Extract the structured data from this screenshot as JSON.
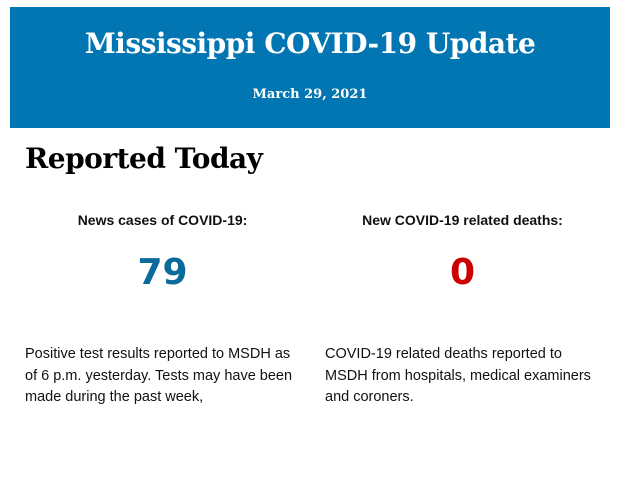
{
  "header": {
    "title": "Mississippi COVID-19 Update",
    "date": "March 29, 2021",
    "background_color": "#0176b2"
  },
  "section": {
    "title": "Reported Today"
  },
  "stats": [
    {
      "label": "News cases of COVID-19:",
      "value": "79",
      "color": "#0a6a9c",
      "description": "Positive test results reported to MSDH as of 6 p.m. yesterday. Tests may have been made during the past week,"
    },
    {
      "label": "New COVID-19 related deaths:",
      "value": "0",
      "color": "#cc0000",
      "description": "COVID-19 related deaths reported to MSDH from hospitals, medical examiners and coroners."
    }
  ]
}
